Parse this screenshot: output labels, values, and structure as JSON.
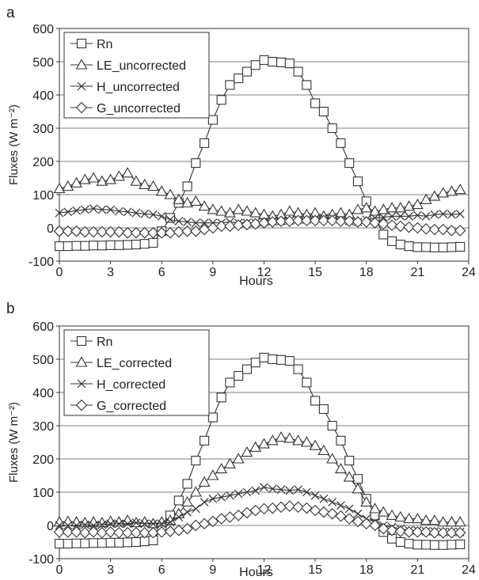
{
  "chart_data": [
    {
      "panel_label": "a",
      "type": "line",
      "xlabel": "Hours",
      "ylabel": "Fluxes (W m⁻²)",
      "xlim": [
        0,
        24
      ],
      "ylim": [
        -100,
        600
      ],
      "xticks": [
        0,
        3,
        6,
        9,
        12,
        15,
        18,
        21,
        24
      ],
      "yticks": [
        -100,
        0,
        100,
        200,
        300,
        400,
        500,
        600
      ],
      "grid": "horizontal",
      "legend_position": "top-left",
      "x": [
        0,
        0.5,
        1,
        1.5,
        2,
        2.5,
        3,
        3.5,
        4,
        4.5,
        5,
        5.5,
        6,
        6.5,
        7,
        7.5,
        8,
        8.5,
        9,
        9.5,
        10,
        10.5,
        11,
        11.5,
        12,
        12.5,
        13,
        13.5,
        14,
        14.5,
        15,
        15.5,
        16,
        16.5,
        17,
        17.5,
        18,
        18.5,
        19,
        19.5,
        20,
        20.5,
        21,
        21.5,
        22,
        22.5,
        23,
        23.5
      ],
      "series": [
        {
          "name": "Rn",
          "marker": "square",
          "values": [
            -55,
            -55,
            -54,
            -54,
            -53,
            -53,
            -52,
            -52,
            -51,
            -50,
            -48,
            -45,
            -10,
            30,
            75,
            125,
            195,
            255,
            325,
            385,
            430,
            450,
            470,
            490,
            505,
            500,
            498,
            495,
            470,
            430,
            375,
            350,
            300,
            255,
            195,
            140,
            80,
            30,
            -20,
            -40,
            -50,
            -55,
            -58,
            -58,
            -59,
            -59,
            -58,
            -57
          ]
        },
        {
          "name": "LE_uncorrected",
          "marker": "triangle",
          "values": [
            118,
            125,
            135,
            145,
            150,
            140,
            145,
            155,
            165,
            140,
            130,
            125,
            110,
            100,
            85,
            75,
            80,
            65,
            55,
            50,
            45,
            55,
            50,
            45,
            40,
            35,
            40,
            50,
            45,
            40,
            45,
            35,
            40,
            45,
            40,
            55,
            60,
            50,
            55,
            60,
            60,
            65,
            70,
            85,
            95,
            105,
            110,
            115
          ]
        },
        {
          "name": "H_uncorrected",
          "marker": "x",
          "values": [
            45,
            48,
            52,
            55,
            58,
            55,
            55,
            50,
            48,
            45,
            42,
            40,
            35,
            25,
            20,
            18,
            15,
            15,
            15,
            15,
            18,
            15,
            15,
            15,
            18,
            20,
            20,
            22,
            25,
            25,
            28,
            30,
            32,
            25,
            20,
            18,
            25,
            30,
            32,
            35,
            35,
            35,
            38,
            35,
            40,
            42,
            40,
            42
          ]
        },
        {
          "name": "G_uncorrected",
          "marker": "diamond",
          "values": [
            -10,
            -10,
            -10,
            -12,
            -12,
            -12,
            -12,
            -12,
            -15,
            -15,
            -15,
            -15,
            -15,
            -15,
            -12,
            -10,
            -10,
            -5,
            0,
            5,
            5,
            8,
            10,
            12,
            15,
            18,
            20,
            20,
            22,
            22,
            22,
            22,
            22,
            20,
            20,
            18,
            18,
            15,
            12,
            8,
            5,
            2,
            0,
            -3,
            -5,
            -5,
            -8,
            -8
          ]
        }
      ]
    },
    {
      "panel_label": "b",
      "type": "line",
      "xlabel": "Hours",
      "ylabel": "Fluxes (W m⁻²)",
      "xlim": [
        0,
        24
      ],
      "ylim": [
        -100,
        600
      ],
      "xticks": [
        0,
        3,
        6,
        9,
        12,
        15,
        18,
        21,
        24
      ],
      "yticks": [
        -100,
        0,
        100,
        200,
        300,
        400,
        500,
        600
      ],
      "grid": "horizontal",
      "legend_position": "top-left",
      "x": [
        0,
        0.5,
        1,
        1.5,
        2,
        2.5,
        3,
        3.5,
        4,
        4.5,
        5,
        5.5,
        6,
        6.5,
        7,
        7.5,
        8,
        8.5,
        9,
        9.5,
        10,
        10.5,
        11,
        11.5,
        12,
        12.5,
        13,
        13.5,
        14,
        14.5,
        15,
        15.5,
        16,
        16.5,
        17,
        17.5,
        18,
        18.5,
        19,
        19.5,
        20,
        20.5,
        21,
        21.5,
        22,
        22.5,
        23,
        23.5
      ],
      "series": [
        {
          "name": "Rn",
          "marker": "square",
          "values": [
            -55,
            -55,
            -54,
            -54,
            -53,
            -53,
            -52,
            -52,
            -51,
            -50,
            -48,
            -45,
            -10,
            30,
            75,
            125,
            195,
            255,
            325,
            385,
            430,
            450,
            470,
            490,
            505,
            500,
            498,
            495,
            470,
            430,
            375,
            350,
            300,
            255,
            195,
            140,
            80,
            30,
            -20,
            -40,
            -50,
            -55,
            -58,
            -58,
            -59,
            -59,
            -58,
            -57
          ]
        },
        {
          "name": "LE_corrected",
          "marker": "triangle",
          "values": [
            10,
            12,
            10,
            8,
            10,
            8,
            12,
            10,
            15,
            8,
            10,
            5,
            10,
            15,
            35,
            70,
            100,
            130,
            150,
            170,
            185,
            200,
            220,
            235,
            245,
            255,
            265,
            262,
            255,
            250,
            240,
            225,
            200,
            170,
            145,
            110,
            70,
            50,
            40,
            30,
            25,
            20,
            20,
            15,
            15,
            10,
            10,
            10
          ]
        },
        {
          "name": "H_corrected",
          "marker": "x",
          "values": [
            0,
            0,
            0,
            2,
            0,
            2,
            5,
            5,
            5,
            8,
            5,
            5,
            5,
            10,
            25,
            40,
            50,
            70,
            80,
            85,
            90,
            95,
            100,
            105,
            115,
            110,
            108,
            105,
            108,
            100,
            90,
            80,
            70,
            60,
            50,
            35,
            20,
            10,
            0,
            -5,
            -10,
            -15,
            -15,
            -18,
            -18,
            -20,
            -20,
            -20
          ]
        },
        {
          "name": "G_corrected",
          "marker": "diamond",
          "values": [
            -20,
            -20,
            -20,
            -22,
            -20,
            -22,
            -20,
            -22,
            -22,
            -22,
            -22,
            -22,
            -20,
            -18,
            -15,
            -10,
            0,
            5,
            12,
            20,
            25,
            30,
            38,
            45,
            50,
            52,
            55,
            58,
            55,
            52,
            45,
            40,
            35,
            28,
            20,
            12,
            5,
            0,
            -10,
            -15,
            -18,
            -20,
            -20,
            -20,
            -22,
            -22,
            -22,
            -22
          ]
        }
      ]
    }
  ]
}
